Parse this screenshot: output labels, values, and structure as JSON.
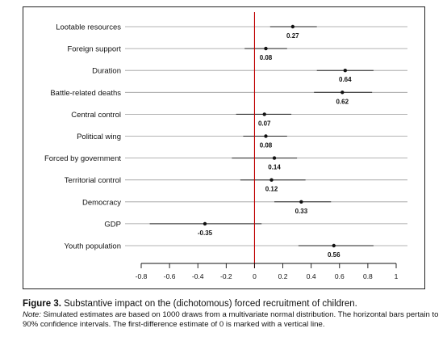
{
  "chart_data": {
    "type": "scatter",
    "orientation": "horizontal",
    "title": "",
    "xlabel": "",
    "ylabel": "",
    "xlim": [
      -0.8,
      1
    ],
    "x_ticks": [
      -0.8,
      -0.6,
      -0.4,
      -0.2,
      0,
      0.2,
      0.4,
      0.6,
      0.8,
      1
    ],
    "x_tick_labels": [
      "-0.8",
      "-0.6",
      "-0.4",
      "-0.2",
      "0",
      "0.2",
      "0.4",
      "0.6",
      "0.8",
      "1"
    ],
    "reference_line": {
      "x": 0,
      "color": "#c00000"
    },
    "grid": "horizontal",
    "categories": [
      "Lootable resources",
      "Foreign support",
      "Duration",
      "Battle-related deaths",
      "Central control",
      "Political wing",
      "Forced by government",
      "Territorial control",
      "Democracy",
      "GDP",
      "Youth population"
    ],
    "estimates": [
      0.27,
      0.08,
      0.64,
      0.62,
      0.07,
      0.08,
      0.14,
      0.12,
      0.33,
      -0.35,
      0.56
    ],
    "labels": [
      "0.27",
      "0.08",
      "0.64",
      "0.62",
      "0.07",
      "0.08",
      "0.14",
      "0.12",
      "0.33",
      "-0.35",
      "0.56"
    ],
    "ci_lower": [
      0.11,
      -0.07,
      0.44,
      0.42,
      -0.13,
      -0.08,
      -0.16,
      -0.1,
      0.14,
      -0.74,
      0.31
    ],
    "ci_upper": [
      0.44,
      0.23,
      0.84,
      0.83,
      0.26,
      0.23,
      0.3,
      0.36,
      0.54,
      0.05,
      0.84
    ]
  },
  "caption": {
    "figure_label": "Figure 3.",
    "title": "Substantive impact on the (dichotomous) forced recruitment of children.",
    "note_label": "Note:",
    "note_text": "Simulated estimates are based on 1000 draws from a multivariate normal distribution. The horizontal bars pertain to 90% confidence intervals. The first-difference estimate of 0 is marked with a vertical line."
  },
  "colors": {
    "reference_line": "#c00000",
    "interval": "#222222",
    "point": "#111111",
    "gridline": "#9a9a9a"
  }
}
